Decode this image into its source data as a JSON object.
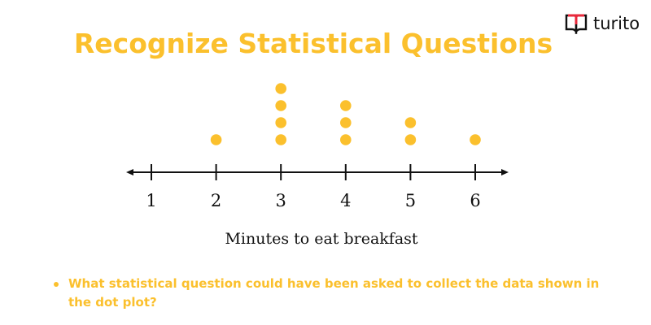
{
  "title": "Recognize Statistical Questions",
  "logo": {
    "text": "turito",
    "icon": "open-book-icon"
  },
  "question": "What statistical question could have been asked to collect the data shown in the dot plot?",
  "colors": {
    "accent": "#FBC02D",
    "logo_red": "#E8293B"
  },
  "chart_data": {
    "type": "dot",
    "xlabel": "Minutes to eat breakfast",
    "categories": [
      1,
      2,
      3,
      4,
      5,
      6
    ],
    "tick_labels": [
      "1",
      "2",
      "3",
      "4",
      "5",
      "6"
    ],
    "counts": [
      0,
      1,
      4,
      3,
      2,
      1
    ],
    "grid": false
  }
}
